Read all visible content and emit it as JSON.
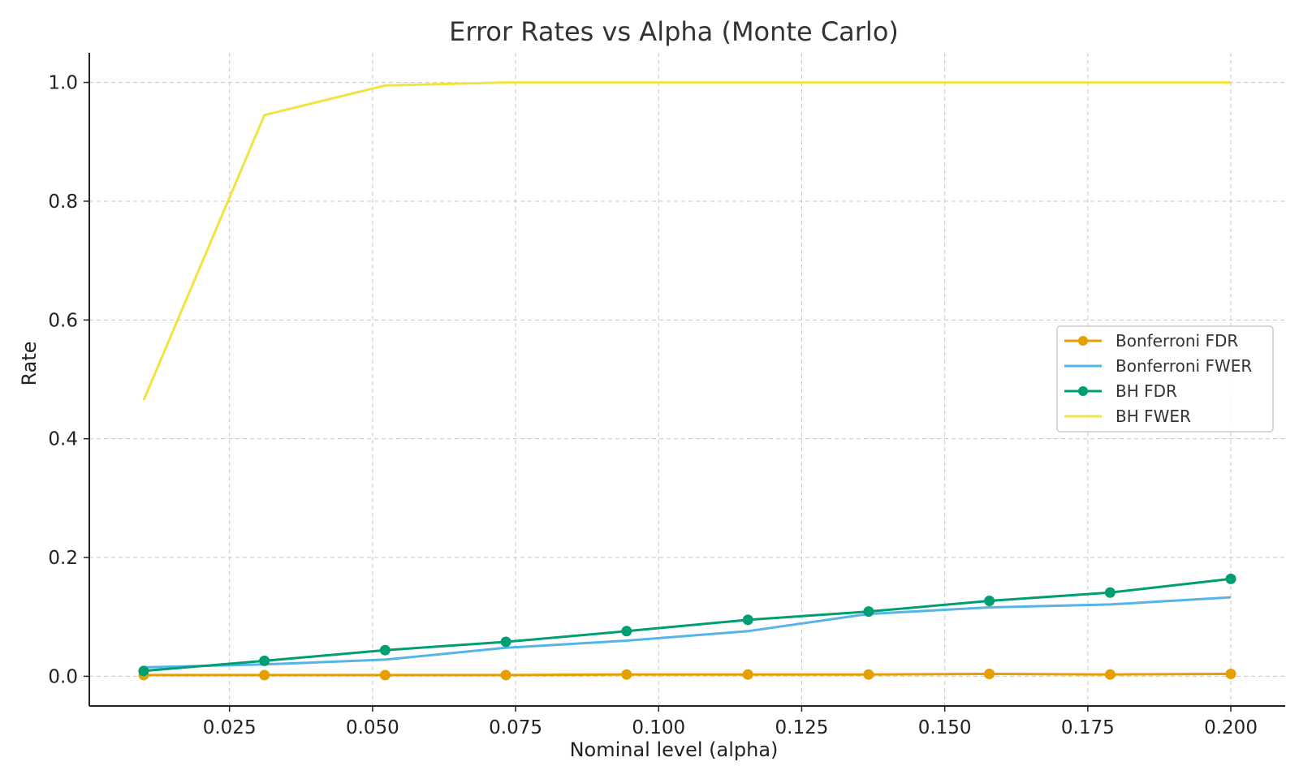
{
  "chart_data": {
    "type": "line",
    "title": "Error Rates vs Alpha (Monte Carlo)",
    "xlabel": "Nominal level (alpha)",
    "ylabel": "Rate",
    "xlim": [
      0.0005,
      0.2095
    ],
    "ylim": [
      -0.05,
      1.05
    ],
    "x_ticks": [
      0.025,
      0.05,
      0.075,
      0.1,
      0.125,
      0.15,
      0.175,
      0.2
    ],
    "x_tick_labels": [
      "0.025",
      "0.050",
      "0.075",
      "0.100",
      "0.125",
      "0.150",
      "0.175",
      "0.200"
    ],
    "y_ticks": [
      0.0,
      0.2,
      0.4,
      0.6,
      0.8,
      1.0
    ],
    "y_tick_labels": [
      "0.0",
      "0.2",
      "0.4",
      "0.6",
      "0.8",
      "1.0"
    ],
    "grid": true,
    "legend_position": "center-right",
    "x": [
      0.01,
      0.0311,
      0.0522,
      0.0733,
      0.0944,
      0.1156,
      0.1367,
      0.1578,
      0.1789,
      0.2
    ],
    "series": [
      {
        "name": "Bonferroni FDR",
        "color": "#E69F00",
        "marker": true,
        "values": [
          0.002,
          0.002,
          0.002,
          0.002,
          0.003,
          0.003,
          0.003,
          0.004,
          0.003,
          0.004
        ]
      },
      {
        "name": "Bonferroni FWER",
        "color": "#56B4E9",
        "marker": false,
        "values": [
          0.015,
          0.02,
          0.028,
          0.048,
          0.06,
          0.076,
          0.105,
          0.116,
          0.121,
          0.133
        ]
      },
      {
        "name": "BH FDR",
        "color": "#009E73",
        "marker": true,
        "values": [
          0.009,
          0.026,
          0.044,
          0.058,
          0.076,
          0.095,
          0.109,
          0.127,
          0.141,
          0.164
        ]
      },
      {
        "name": "BH FWER",
        "color": "#F0E442",
        "marker": false,
        "values": [
          0.465,
          0.945,
          0.995,
          1.0,
          1.0,
          1.0,
          1.0,
          1.0,
          1.0,
          1.0
        ]
      }
    ]
  }
}
